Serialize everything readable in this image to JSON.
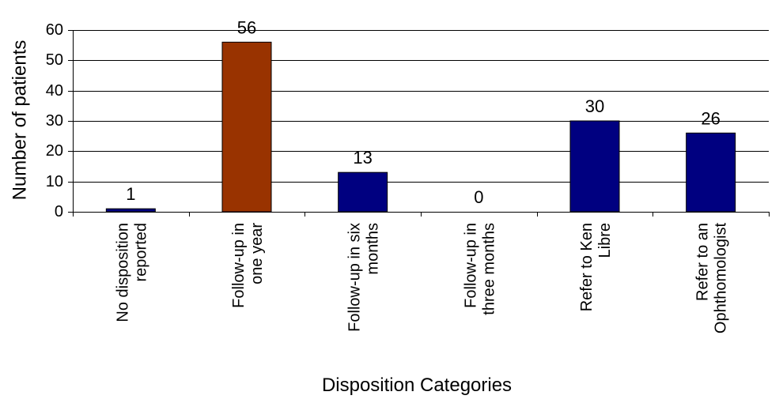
{
  "chart_data": {
    "type": "bar",
    "categories": [
      [
        "No disposition",
        "reported"
      ],
      [
        "Follow-up in",
        "one year"
      ],
      [
        "Follow-up in six",
        "months"
      ],
      [
        "Follow-up in",
        "three months"
      ],
      [
        "Refer to Ken",
        "Libre"
      ],
      [
        "Refer to an",
        "Ophthomologist"
      ]
    ],
    "values": [
      1,
      56,
      13,
      0,
      30,
      26
    ],
    "data_labels": [
      "1",
      "56",
      "13",
      "0",
      "30",
      "26"
    ],
    "bar_colors": [
      "#000080",
      "#993300",
      "#000080",
      "#000080",
      "#000080",
      "#000080"
    ],
    "yticks": [
      "0",
      "10",
      "20",
      "30",
      "40",
      "50",
      "60"
    ],
    "ylim": [
      0,
      60
    ],
    "xlabel": "Disposition Categories",
    "ylabel": "Number of patients",
    "grid": true,
    "legend": "none"
  }
}
